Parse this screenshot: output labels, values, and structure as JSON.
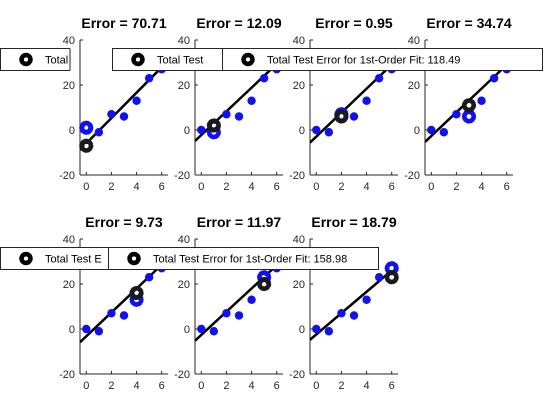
{
  "window": {
    "background": "#ffffff"
  },
  "legend_icon": "gear-icon",
  "chart_data": [
    {
      "type": "scatter",
      "title": "Error = 70.71",
      "xlim": [
        -0.5,
        6.5
      ],
      "ylim": [
        -20,
        40
      ],
      "xticks": [
        0,
        2,
        4,
        6
      ],
      "yticks": [
        -20,
        0,
        20,
        40
      ],
      "points": [
        {
          "x": 0,
          "y": 0
        },
        {
          "x": 1,
          "y": -1
        },
        {
          "x": 2,
          "y": 7
        },
        {
          "x": 3,
          "y": 6
        },
        {
          "x": 4,
          "y": 13
        },
        {
          "x": 5,
          "y": 23
        },
        {
          "x": 6,
          "y": 27
        }
      ],
      "fit_line": {
        "x": [
          -0.5,
          6.5
        ],
        "y": [
          -8.8,
          30.7
        ]
      },
      "heldout_true": {
        "x": 0,
        "y": 1
      },
      "heldout_pred": {
        "x": 0,
        "y": -7
      },
      "legend": {
        "label": "Total Test E"
      }
    },
    {
      "type": "scatter",
      "title": "Error = 12.09",
      "xlim": [
        -0.5,
        6.5
      ],
      "ylim": [
        -20,
        40
      ],
      "xticks": [
        0,
        2,
        4,
        6
      ],
      "yticks": [
        -20,
        0,
        20,
        40
      ],
      "points": [
        {
          "x": 0,
          "y": 0
        },
        {
          "x": 1,
          "y": -1
        },
        {
          "x": 2,
          "y": 7
        },
        {
          "x": 3,
          "y": 6
        },
        {
          "x": 4,
          "y": 13
        },
        {
          "x": 5,
          "y": 23
        },
        {
          "x": 6,
          "y": 27
        }
      ],
      "fit_line": {
        "x": [
          -0.5,
          6.5
        ],
        "y": [
          -4.9,
          32.0
        ]
      },
      "heldout_true": {
        "x": 1,
        "y": -1
      },
      "heldout_pred": {
        "x": 1,
        "y": 2
      },
      "legend": {
        "label": "Total Test"
      }
    },
    {
      "type": "scatter",
      "title": "Error = 0.95",
      "xlim": [
        -0.5,
        6.5
      ],
      "ylim": [
        -20,
        40
      ],
      "xticks": [
        0,
        2,
        4,
        6
      ],
      "yticks": [
        -20,
        0,
        20,
        40
      ],
      "points": [
        {
          "x": 0,
          "y": 0
        },
        {
          "x": 1,
          "y": -1
        },
        {
          "x": 2,
          "y": 7
        },
        {
          "x": 3,
          "y": 6
        },
        {
          "x": 4,
          "y": 13
        },
        {
          "x": 5,
          "y": 23
        },
        {
          "x": 6,
          "y": 27
        }
      ],
      "fit_line": {
        "x": [
          -0.5,
          6.5
        ],
        "y": [
          -5.6,
          31.7
        ]
      },
      "heldout_true": {
        "x": 2,
        "y": 7
      },
      "heldout_pred": {
        "x": 2,
        "y": 6
      },
      "legend": {
        "label": "Total Test Error for 1st-Order Fit: 118.49"
      }
    },
    {
      "type": "scatter",
      "title": "Error = 34.74",
      "xlim": [
        -0.5,
        6.5
      ],
      "ylim": [
        -20,
        40
      ],
      "xticks": [
        0,
        2,
        4,
        6
      ],
      "yticks": [
        -20,
        0,
        20,
        40
      ],
      "points": [
        {
          "x": 0,
          "y": 0
        },
        {
          "x": 1,
          "y": -1
        },
        {
          "x": 2,
          "y": 7
        },
        {
          "x": 3,
          "y": 6
        },
        {
          "x": 4,
          "y": 13
        },
        {
          "x": 5,
          "y": 23
        },
        {
          "x": 6,
          "y": 27
        }
      ],
      "fit_line": {
        "x": [
          -0.5,
          6.5
        ],
        "y": [
          -5.3,
          31.6
        ]
      },
      "heldout_true": {
        "x": 3,
        "y": 6
      },
      "heldout_pred": {
        "x": 3,
        "y": 11
      },
      "legend": null
    },
    {
      "type": "scatter",
      "title": "Error = 9.73",
      "xlim": [
        -0.5,
        6.5
      ],
      "ylim": [
        -20,
        40
      ],
      "xticks": [
        0,
        2,
        4,
        6
      ],
      "yticks": [
        -20,
        0,
        20,
        40
      ],
      "points": [
        {
          "x": 0,
          "y": 0
        },
        {
          "x": 1,
          "y": -1
        },
        {
          "x": 2,
          "y": 7
        },
        {
          "x": 3,
          "y": 6
        },
        {
          "x": 4,
          "y": 13
        },
        {
          "x": 5,
          "y": 23
        },
        {
          "x": 6,
          "y": 27
        }
      ],
      "fit_line": {
        "x": [
          -0.5,
          6.5
        ],
        "y": [
          -5.9,
          31.2
        ]
      },
      "heldout_true": {
        "x": 4,
        "y": 13
      },
      "heldout_pred": {
        "x": 4,
        "y": 16
      },
      "legend": {
        "label": "Total Test E"
      }
    },
    {
      "type": "scatter",
      "title": "Error = 11.97",
      "xlim": [
        -0.5,
        6.5
      ],
      "ylim": [
        -20,
        40
      ],
      "xticks": [
        0,
        2,
        4,
        6
      ],
      "yticks": [
        -20,
        0,
        20,
        40
      ],
      "points": [
        {
          "x": 0,
          "y": 0
        },
        {
          "x": 1,
          "y": -1
        },
        {
          "x": 2,
          "y": 7
        },
        {
          "x": 3,
          "y": 6
        },
        {
          "x": 4,
          "y": 13
        },
        {
          "x": 5,
          "y": 23
        },
        {
          "x": 6,
          "y": 27
        }
      ],
      "fit_line": {
        "x": [
          -0.5,
          6.5
        ],
        "y": [
          -5.2,
          30.9
        ]
      },
      "heldout_true": {
        "x": 5,
        "y": 23
      },
      "heldout_pred": {
        "x": 5,
        "y": 20
      },
      "legend": {
        "label": "Total Test Error for 1st-Order Fit: 158.98"
      }
    },
    {
      "type": "scatter",
      "title": "Error = 18.79",
      "xlim": [
        -0.5,
        6.5
      ],
      "ylim": [
        -20,
        40
      ],
      "xticks": [
        0,
        2,
        4,
        6
      ],
      "yticks": [
        -20,
        0,
        20,
        40
      ],
      "points": [
        {
          "x": 0,
          "y": 0
        },
        {
          "x": 1,
          "y": -1
        },
        {
          "x": 2,
          "y": 7
        },
        {
          "x": 3,
          "y": 6
        },
        {
          "x": 4,
          "y": 13
        },
        {
          "x": 5,
          "y": 23
        },
        {
          "x": 6,
          "y": 27
        }
      ],
      "fit_line": {
        "x": [
          -0.5,
          6.5
        ],
        "y": [
          -4.8,
          28.4
        ]
      },
      "heldout_true": {
        "x": 6,
        "y": 27
      },
      "heldout_pred": {
        "x": 6,
        "y": 23
      },
      "legend": null
    }
  ],
  "colors": {
    "data_point": "#1010f0",
    "fit_line": "#000000",
    "heldout_true": "#1010f0",
    "heldout_pred": "#1a1a1a",
    "axis": "#262626",
    "legend_border": "#262626"
  }
}
